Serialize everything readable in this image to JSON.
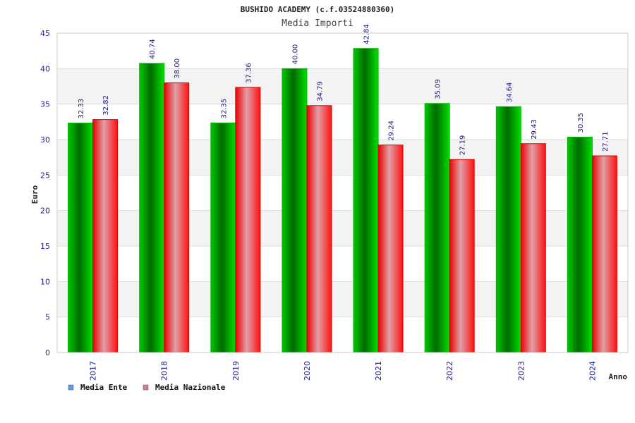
{
  "colors": {
    "ente": "#00b400",
    "nazionale": "#e00000",
    "legend_ente": "#5aa0e6",
    "legend_nazionale": "#d87aa8",
    "tick_text": "#1a1aa6",
    "band": "#f3f3f3"
  },
  "legend": [
    {
      "label": "Media Ente",
      "color_key": "legend_ente"
    },
    {
      "label": "Media Nazionale",
      "color_key": "legend_nazionale"
    }
  ],
  "chart_data": {
    "type": "bar",
    "title": "BUSHIDO ACADEMY (c.f.03524880360)",
    "subtitle": "Media Importi",
    "xlabel": "Anno",
    "ylabel": "Euro",
    "ylim": [
      0,
      45
    ],
    "yticks": [
      0,
      5,
      10,
      15,
      20,
      25,
      30,
      35,
      40,
      45
    ],
    "grid": true,
    "legend_position": "bottom-left",
    "categories": [
      "2017",
      "2018",
      "2019",
      "2020",
      "2021",
      "2022",
      "2023",
      "2024"
    ],
    "series": [
      {
        "name": "Media Ente",
        "values": [
          32.33,
          40.74,
          32.35,
          40.0,
          42.84,
          35.09,
          34.64,
          30.35
        ],
        "labels": [
          "32.33",
          "40.74",
          "32.35",
          "40.00",
          "42.84",
          "35.09",
          "34.64",
          "30.35"
        ]
      },
      {
        "name": "Media Nazionale",
        "values": [
          32.82,
          38.0,
          37.36,
          34.79,
          29.24,
          27.19,
          29.43,
          27.71
        ],
        "labels": [
          "32.82",
          "38.00",
          "37.36",
          "34.79",
          "29.24",
          "27.19",
          "29.43",
          "27.71"
        ]
      }
    ]
  }
}
